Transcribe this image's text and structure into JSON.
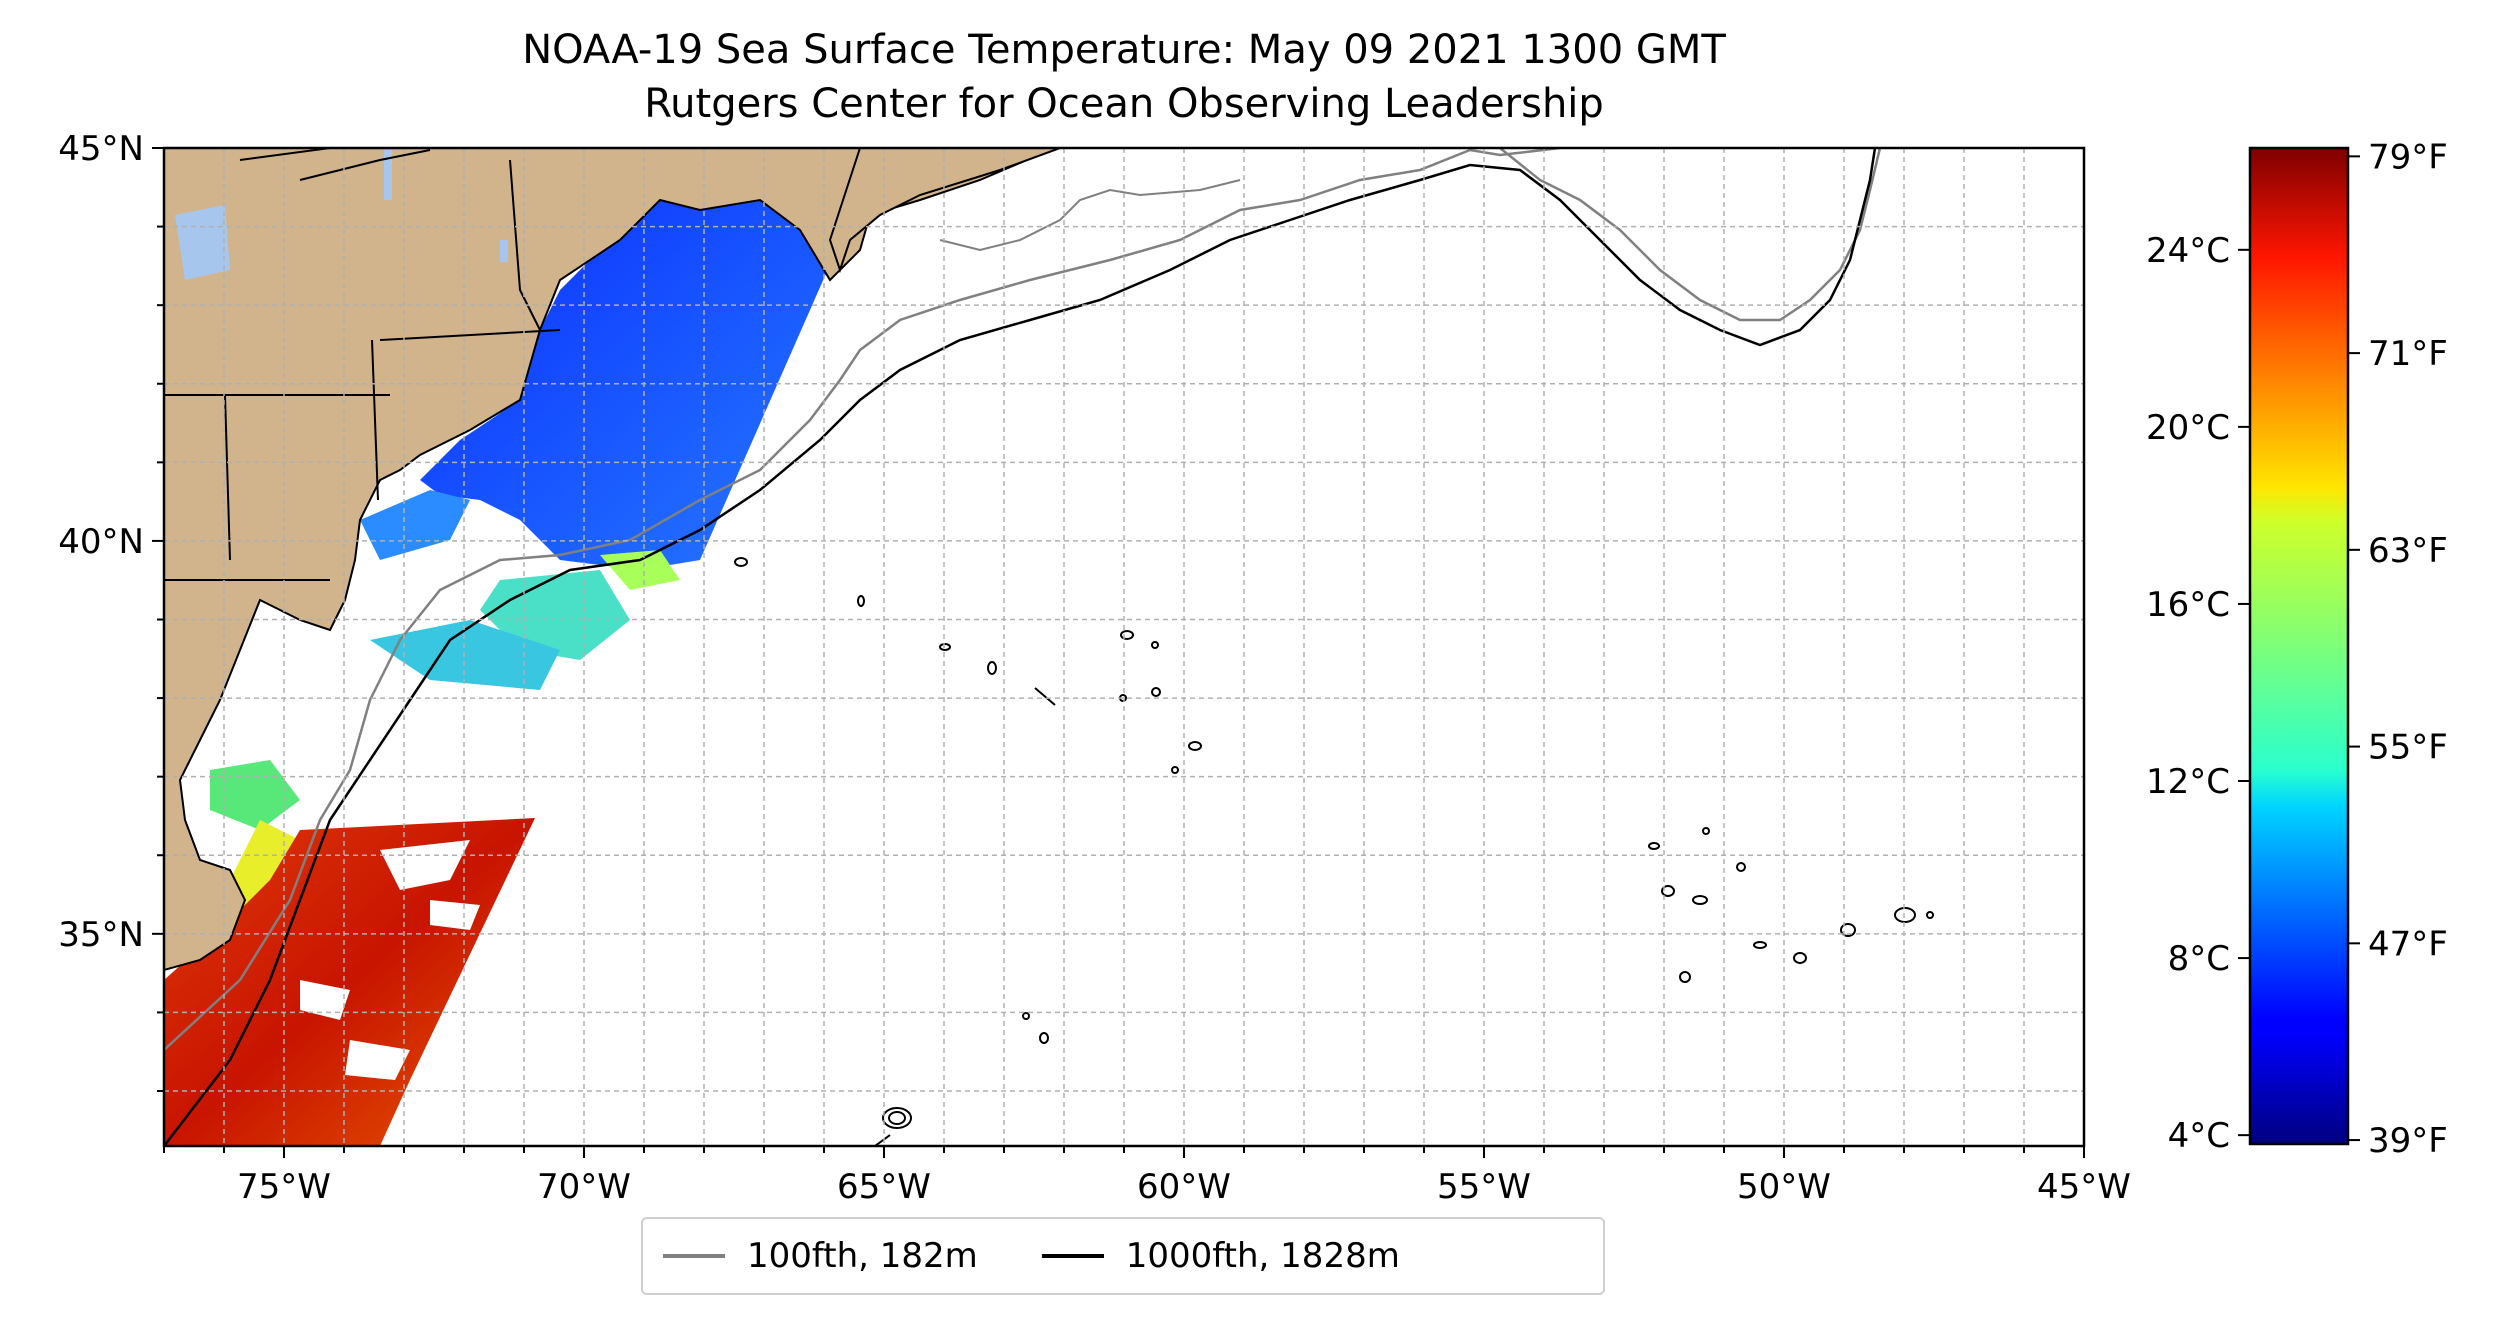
{
  "title": "NOAA-19 Sea Surface Temperature: May 09 2021 1300 GMT",
  "subtitle": "Rutgers Center for Ocean Observing Leadership",
  "map": {
    "extent": {
      "lon_min": -77,
      "lon_max": -45,
      "lat_min": 32.3,
      "lat_max": 45
    },
    "lon_ticks": [
      {
        "value": -75,
        "label": "75°W"
      },
      {
        "value": -70,
        "label": "70°W"
      },
      {
        "value": -65,
        "label": "65°W"
      },
      {
        "value": -60,
        "label": "60°W"
      },
      {
        "value": -55,
        "label": "55°W"
      },
      {
        "value": -50,
        "label": "50°W"
      },
      {
        "value": -45,
        "label": "45°W"
      }
    ],
    "lat_ticks": [
      {
        "value": 45,
        "label": "45°N"
      },
      {
        "value": 40,
        "label": "40°N"
      },
      {
        "value": 35,
        "label": "35°N"
      }
    ],
    "gridlines": true,
    "land_color": "#d2b48c",
    "water_body_color": "#a6c6ee"
  },
  "colorbar": {
    "colormap": "jet",
    "celsius_ticks": [
      {
        "value": 4,
        "label": "4°C"
      },
      {
        "value": 8,
        "label": "8°C"
      },
      {
        "value": 12,
        "label": "12°C"
      },
      {
        "value": 16,
        "label": "16°C"
      },
      {
        "value": 20,
        "label": "20°C"
      },
      {
        "value": 24,
        "label": "24°C"
      }
    ],
    "fahrenheit_ticks": [
      {
        "value": 39,
        "label": "39°F"
      },
      {
        "value": 47,
        "label": "47°F"
      },
      {
        "value": 55,
        "label": "55°F"
      },
      {
        "value": 63,
        "label": "63°F"
      },
      {
        "value": 71,
        "label": "71°F"
      },
      {
        "value": 79,
        "label": "79°F"
      }
    ]
  },
  "legend": {
    "entries": [
      {
        "label": "100fth, 182m",
        "color": "#808080"
      },
      {
        "label": "1000fth, 1828m",
        "color": "#000000"
      }
    ]
  }
}
